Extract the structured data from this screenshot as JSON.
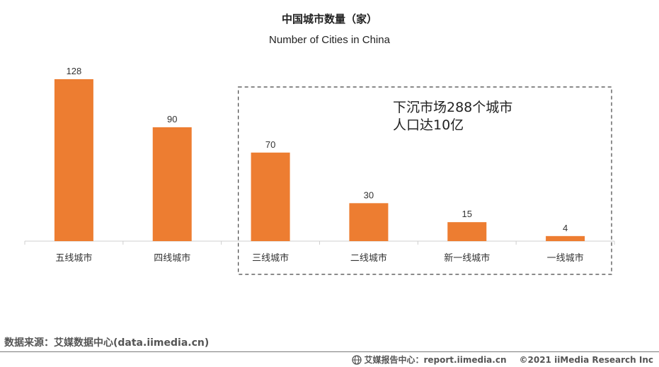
{
  "chart_data": {
    "type": "bar",
    "title": "中国城市数量（家）",
    "subtitle": "Number of Cities in China",
    "categories": [
      "五线城市",
      "四线城市",
      "三线城市",
      "二线城市",
      "新一线城市",
      "一线城市"
    ],
    "values": [
      128,
      90,
      70,
      30,
      15,
      4
    ],
    "value_labels": [
      "128",
      "90",
      "70",
      "30",
      "15",
      "4"
    ],
    "ylim": [
      0,
      128
    ],
    "grid": false,
    "bar_color": "#ED7D31",
    "annotation": {
      "lines": [
        "下沉市场288个城市",
        "人口达10亿"
      ],
      "covers_categories": [
        "三线城市",
        "二线城市",
        "新一线城市",
        "一线城市"
      ]
    }
  },
  "source": "数据来源：艾媒数据中心(data.iimedia.cn)",
  "footer": {
    "icon": "globe-icon",
    "report": "艾媒报告中心：report.iimedia.cn",
    "copyright": "©2021  iiMedia Research  Inc"
  }
}
